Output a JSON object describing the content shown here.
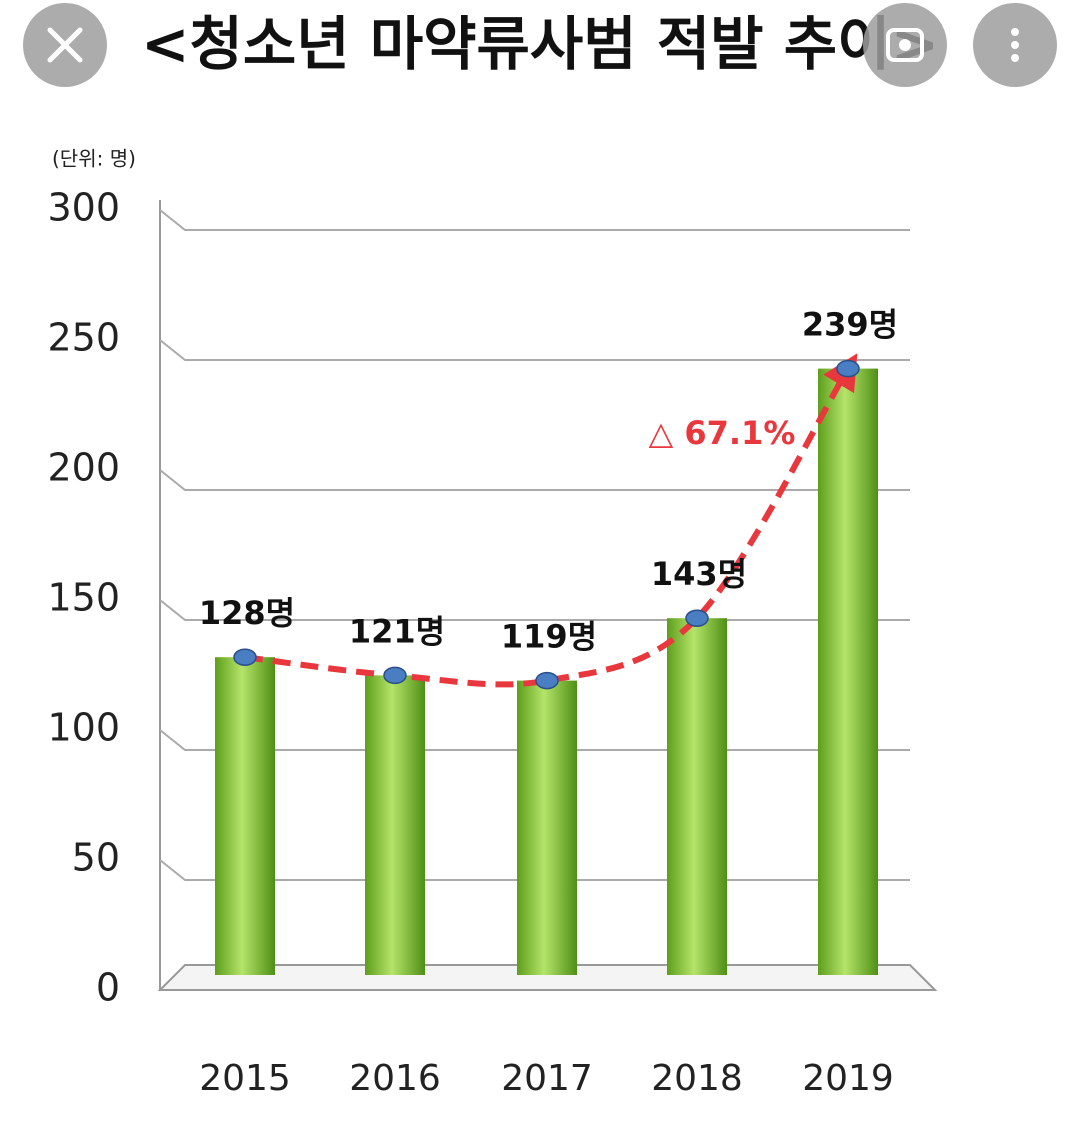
{
  "chart_data": {
    "type": "bar",
    "title": "<청소년 마약류사범 적발 추이>",
    "unit_label": "(단위: 명)",
    "categories": [
      "2015",
      "2016",
      "2017",
      "2018",
      "2019"
    ],
    "values": [
      128,
      121,
      119,
      143,
      239
    ],
    "value_labels": [
      "128명",
      "121명",
      "119명",
      "143명",
      "239명"
    ],
    "color": "#8cc63f",
    "line_color": "#e8383d",
    "marker_color": "#4a7ec2",
    "annotation": "△ 67.1%",
    "ylim": [
      0,
      300
    ],
    "yticks": [
      0,
      50,
      100,
      150,
      200,
      250,
      300
    ],
    "grid": true
  }
}
